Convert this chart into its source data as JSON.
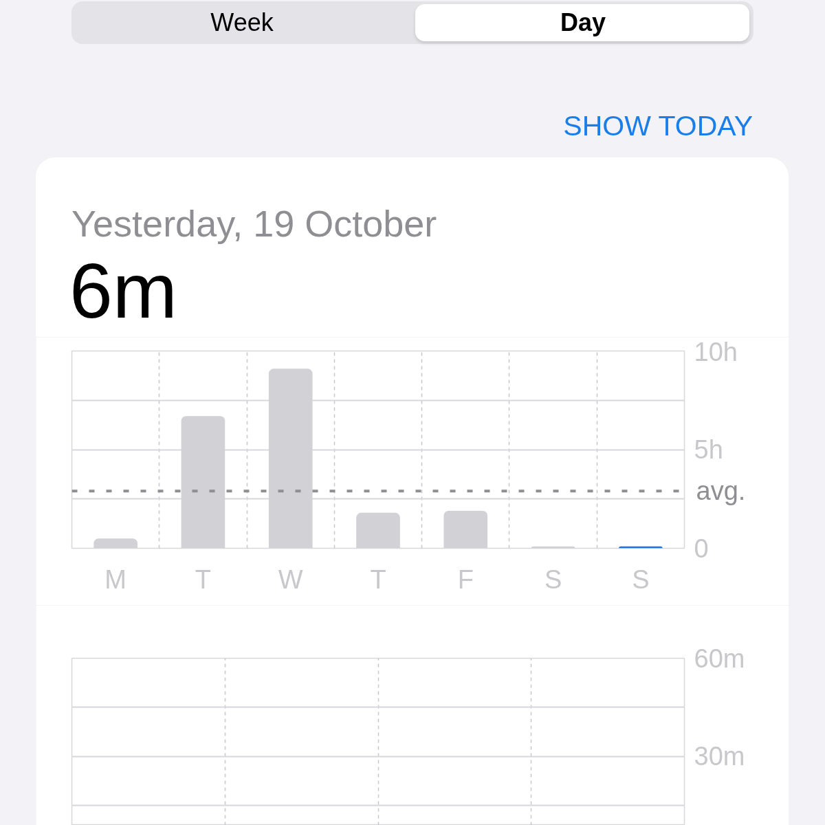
{
  "chart_data": [
    {
      "type": "bar",
      "title": "Yesterday, 19 October",
      "subtitle": "6m",
      "annotations": [
        "Week",
        "Day",
        "SHOW TODAY"
      ],
      "categories": [
        "M",
        "T",
        "W",
        "T",
        "F",
        "S",
        "S"
      ],
      "values": [
        0.5,
        6.7,
        9.1,
        1.8,
        1.9,
        0.1,
        0.1
      ],
      "colors": [
        "#d1d1d6",
        "#d1d1d6",
        "#d1d1d6",
        "#d1d1d6",
        "#d1d1d6",
        "#d1d1d6",
        "#1a73e8"
      ],
      "ylim": [
        0,
        10
      ],
      "yticks": [
        0,
        {
          "value": 2.5,
          "label": null
        },
        {
          "value": 5,
          "label": "5h"
        },
        {
          "value": 7.5,
          "label": null
        },
        {
          "value": 10,
          "label": "10h"
        }
      ],
      "grid": true,
      "ref_lines": [
        {
          "axis": "y",
          "value": 2.9,
          "label": "avg.",
          "color": "#8e8e93",
          "line_style": "dashed"
        }
      ]
    },
    {
      "type": "bar",
      "categories": [
        null,
        null,
        null,
        null,
        null,
        null,
        null,
        null,
        null,
        null,
        null,
        null,
        null,
        null,
        null,
        null,
        null,
        null,
        null,
        null,
        null,
        null,
        null,
        null
      ],
      "values": [
        null,
        null,
        null,
        null,
        null,
        null,
        null,
        null,
        null,
        null,
        null,
        null,
        null,
        null,
        null,
        null,
        null,
        null,
        null,
        null,
        null,
        null,
        null,
        null
      ],
      "ylim": [
        9,
        60
      ],
      "yticks": [
        {
          "value": 15,
          "label": null
        },
        {
          "value": 30,
          "label": "30m"
        },
        {
          "value": 45,
          "label": null
        },
        {
          "value": 60,
          "label": "60m"
        }
      ],
      "grid": true,
      "tick_labels": "y"
    }
  ]
}
